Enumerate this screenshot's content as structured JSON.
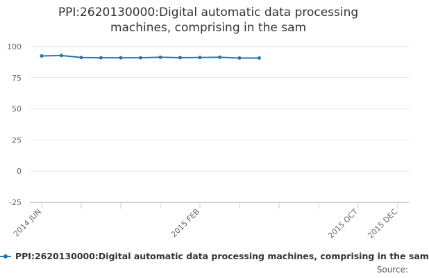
{
  "chart_data": {
    "type": "line",
    "title_lines": [
      "PPI:2620130000:Digital automatic data processing",
      "machines, comprising in the sam"
    ],
    "x_tick_labels": [
      {
        "month_index": 0,
        "label": "2014 JUN"
      },
      {
        "month_index": 8,
        "label": "2015 FEB"
      },
      {
        "month_index": 16,
        "label": "2015 OCT"
      },
      {
        "month_index": 18,
        "label": "2015 DEC"
      }
    ],
    "x_months": [
      "2014-06",
      "2014-07",
      "2014-08",
      "2014-09",
      "2014-10",
      "2014-11",
      "2014-12",
      "2015-01",
      "2015-02",
      "2015-03",
      "2015-04",
      "2015-05",
      "2015-06",
      "2015-07",
      "2015-08",
      "2015-09",
      "2015-10",
      "2015-11",
      "2015-12"
    ],
    "y_ticks": [
      100,
      75,
      50,
      25,
      0,
      -25
    ],
    "ylim": [
      -25,
      100
    ],
    "grid": true,
    "legend_position": "bottom",
    "series": [
      {
        "name": "PPI:2620130000:Digital automatic data processing machines, comprising in the sam",
        "color": "#1f77b4",
        "points": [
          {
            "x": "2014-06",
            "y": 92.5
          },
          {
            "x": "2014-07",
            "y": 92.8
          },
          {
            "x": "2014-08",
            "y": 91.2
          },
          {
            "x": "2014-09",
            "y": 91.0
          },
          {
            "x": "2014-10",
            "y": 91.0
          },
          {
            "x": "2014-11",
            "y": 91.0
          },
          {
            "x": "2014-12",
            "y": 91.4
          },
          {
            "x": "2015-01",
            "y": 91.1
          },
          {
            "x": "2015-02",
            "y": 91.2
          },
          {
            "x": "2015-03",
            "y": 91.4
          },
          {
            "x": "2015-04",
            "y": 90.8
          },
          {
            "x": "2015-05",
            "y": 90.8
          }
        ]
      }
    ],
    "source_label": "Source:"
  }
}
